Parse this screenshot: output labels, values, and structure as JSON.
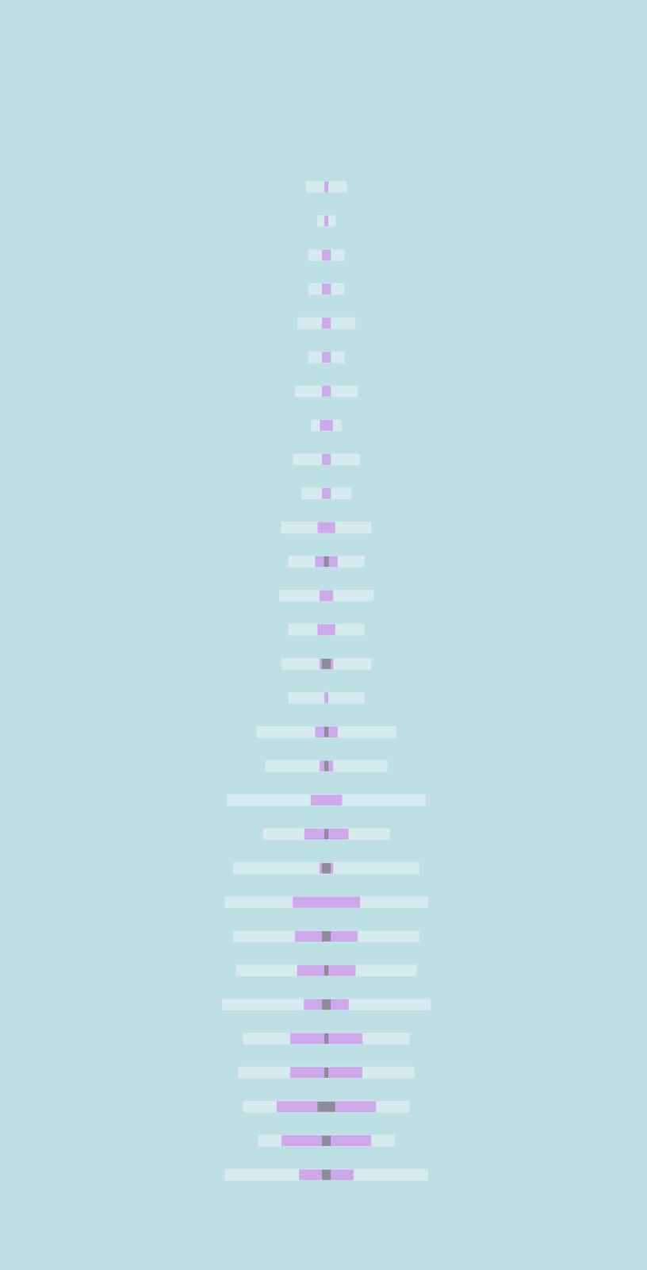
{
  "chart_data": {
    "type": "bar",
    "orientation": "horizontal",
    "tick_labels": false,
    "grid": false,
    "categories": [
      null,
      null,
      null,
      null,
      null,
      null,
      null,
      null,
      null,
      null,
      null,
      null,
      null,
      null,
      null,
      null,
      null,
      null,
      null,
      null,
      null,
      null,
      null,
      null,
      null,
      null,
      null,
      null,
      null,
      null
    ],
    "xlim": [
      -400,
      400
    ],
    "series": [
      {
        "color": "#d6ebee",
        "values": [
          51,
          23,
          45,
          45,
          72,
          45,
          78,
          38,
          84,
          62,
          113,
          95,
          118,
          95,
          112,
          95,
          175,
          152,
          248,
          158,
          232,
          254,
          232,
          226,
          260,
          208,
          220,
          208,
          170,
          254
        ]
      },
      {
        "color": "#cfa8ec",
        "values": [
          5,
          5,
          11,
          11,
          11,
          11,
          11,
          16,
          11,
          11,
          22,
          28,
          17,
          22,
          17,
          5,
          28,
          17,
          39,
          55,
          17,
          84,
          78,
          73,
          56,
          90,
          90,
          124,
          112,
          68
        ]
      },
      {
        "color": "#8a8d97",
        "values": [
          null,
          null,
          null,
          null,
          null,
          null,
          null,
          null,
          null,
          null,
          null,
          6,
          null,
          null,
          11,
          null,
          5,
          5,
          null,
          5,
          11,
          null,
          11,
          5,
          11,
          5,
          5,
          22,
          11,
          11
        ]
      }
    ]
  }
}
